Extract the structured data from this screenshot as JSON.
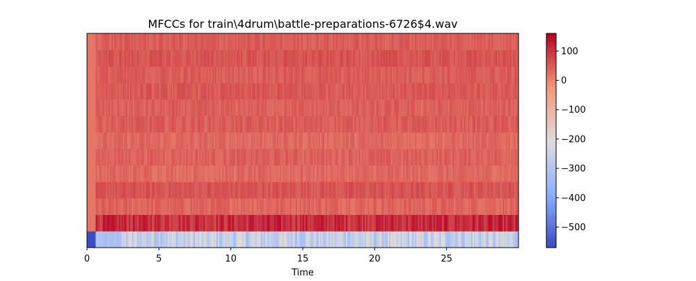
{
  "chart_data": {
    "type": "heatmap",
    "title": "MFCCs for train\\4drum\\battle-preparations-6726$4.wav",
    "xlabel": "Time",
    "ylabel": "",
    "xlim": [
      0,
      30
    ],
    "x_ticks": [
      0,
      5,
      10,
      15,
      20,
      25
    ],
    "x_tick_labels": [
      "0",
      "5",
      "10",
      "15",
      "20",
      "25"
    ],
    "n_coefficients": 13,
    "colormap": "coolwarm",
    "color_range": [
      -570,
      160
    ],
    "colorbar_ticks": [
      100,
      0,
      -100,
      -200,
      -300,
      -400,
      -500
    ],
    "colorbar_tick_labels": [
      "100",
      "0",
      "−100",
      "−200",
      "−300",
      "−400",
      "−500"
    ],
    "coefficient_means": [
      -260,
      110,
      40,
      60,
      35,
      45,
      35,
      50,
      45,
      55,
      50,
      60,
      50
    ],
    "coefficient_variation": [
      80,
      40,
      20,
      18,
      18,
      18,
      18,
      18,
      18,
      18,
      18,
      18,
      18
    ],
    "coefficient_start_values": [
      -570,
      20,
      20,
      20,
      20,
      20,
      20,
      20,
      20,
      20,
      20,
      20,
      20
    ],
    "grid": false,
    "legend": "colorbar-right"
  }
}
